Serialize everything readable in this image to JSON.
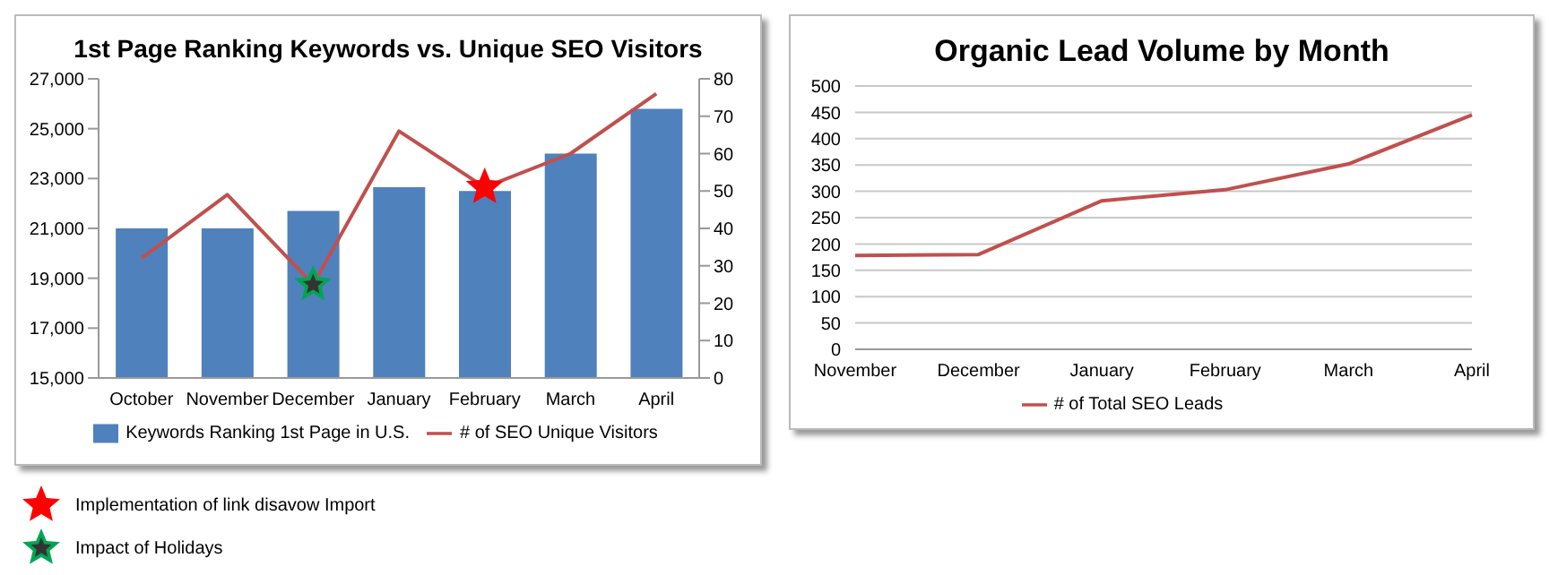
{
  "chart_data": [
    {
      "type": "bar",
      "title": "1st Page Ranking Keywords vs. Unique SEO Visitors",
      "categories": [
        "October",
        "November",
        "December",
        "January",
        "February",
        "March",
        "April"
      ],
      "series": [
        {
          "name": "Keywords Ranking 1st Page in U.S.",
          "color": "#4f81bd",
          "values": [
            21000,
            21000,
            21700,
            22650,
            22500,
            24000,
            25800
          ]
        },
        {
          "type": "line",
          "axis": "y2",
          "name": "# of SEO Unique Visitors",
          "color": "#c0504d",
          "values": [
            32,
            49,
            25,
            66,
            51,
            60,
            76
          ]
        },
        {
          "type": "scatter",
          "axis": "y2",
          "marker": "star",
          "color": "#ff0000",
          "x": [
            "February"
          ],
          "values": [
            51
          ]
        },
        {
          "type": "scatter",
          "axis": "y2",
          "marker": "star",
          "color": "#00a651",
          "x": [
            "December"
          ],
          "values": [
            25
          ]
        }
      ],
      "ylim": [
        15000,
        27000
      ],
      "yticks": [
        {
          "value": 15000,
          "label": "15,000"
        },
        {
          "value": 17000,
          "label": "17,000"
        },
        {
          "value": 19000,
          "label": "19,000"
        },
        {
          "value": 21000,
          "label": "21,000"
        },
        {
          "value": 23000,
          "label": "23,000"
        },
        {
          "value": 25000,
          "label": "25,000"
        },
        {
          "value": 27000,
          "label": "27,000"
        }
      ],
      "y2lim": [
        0,
        80
      ],
      "y2ticks": [
        0,
        10,
        20,
        30,
        40,
        50,
        60,
        70,
        80
      ],
      "legend": "bottom",
      "marker": "none",
      "line_style": "solid",
      "annotations": [
        "Implementation of link disavow Import",
        "Impact of Holidays"
      ]
    },
    {
      "type": "line",
      "title": "Organic Lead Volume by Month",
      "categories": [
        "November",
        "December",
        "January",
        "February",
        "March",
        "April"
      ],
      "series": [
        {
          "name": "# of Total SEO Leads",
          "color": "#c0504d",
          "values": [
            178,
            180,
            282,
            303,
            352,
            445
          ]
        }
      ],
      "ylim": [
        0,
        500
      ],
      "yticks": [
        0,
        50,
        100,
        150,
        200,
        250,
        300,
        350,
        400,
        450,
        500
      ],
      "grid": "y",
      "legend": "bottom",
      "marker": "none",
      "line_style": "solid"
    }
  ]
}
